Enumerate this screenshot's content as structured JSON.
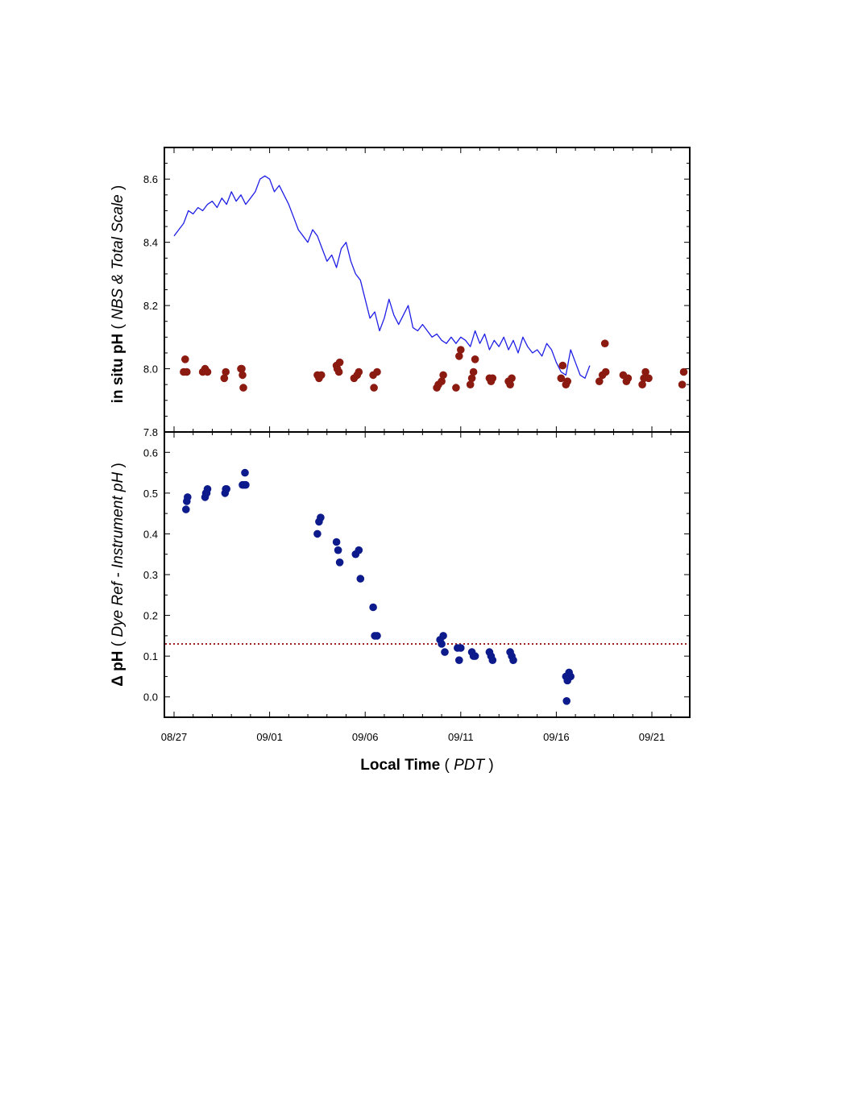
{
  "chart_data": [
    {
      "type": "line",
      "ylabel": {
        "main": "in situ pH",
        "open": " ( ",
        "sub": "NBS & Total Scale",
        "close": " )"
      },
      "ylim": [
        7.8,
        8.7
      ],
      "y_ticks": [
        "7.8",
        "8.0",
        "8.2",
        "8.4",
        "8.6"
      ],
      "series": [
        {
          "type": "line",
          "color": "#1f1fe6",
          "points": [
            [
              "08/27 00:00",
              8.42
            ],
            [
              "08/27 06:00",
              8.44
            ],
            [
              "08/27 12:00",
              8.46
            ],
            [
              "08/27 18:00",
              8.5
            ],
            [
              "08/28 00:00",
              8.49
            ],
            [
              "08/28 06:00",
              8.51
            ],
            [
              "08/28 12:00",
              8.5
            ],
            [
              "08/28 18:00",
              8.52
            ],
            [
              "08/29 00:00",
              8.53
            ],
            [
              "08/29 06:00",
              8.51
            ],
            [
              "08/29 12:00",
              8.54
            ],
            [
              "08/29 18:00",
              8.52
            ],
            [
              "08/30 00:00",
              8.56
            ],
            [
              "08/30 06:00",
              8.53
            ],
            [
              "08/30 12:00",
              8.55
            ],
            [
              "08/30 18:00",
              8.52
            ],
            [
              "08/31 00:00",
              8.54
            ],
            [
              "08/31 06:00",
              8.56
            ],
            [
              "08/31 12:00",
              8.6
            ],
            [
              "08/31 18:00",
              8.61
            ],
            [
              "09/01 00:00",
              8.6
            ],
            [
              "09/01 06:00",
              8.56
            ],
            [
              "09/01 12:00",
              8.58
            ],
            [
              "09/01 18:00",
              8.55
            ],
            [
              "09/02 00:00",
              8.52
            ],
            [
              "09/02 06:00",
              8.48
            ],
            [
              "09/02 12:00",
              8.44
            ],
            [
              "09/02 18:00",
              8.42
            ],
            [
              "09/03 00:00",
              8.4
            ],
            [
              "09/03 06:00",
              8.44
            ],
            [
              "09/03 12:00",
              8.42
            ],
            [
              "09/03 18:00",
              8.38
            ],
            [
              "09/04 00:00",
              8.34
            ],
            [
              "09/04 06:00",
              8.36
            ],
            [
              "09/04 12:00",
              8.32
            ],
            [
              "09/04 18:00",
              8.38
            ],
            [
              "09/05 00:00",
              8.4
            ],
            [
              "09/05 06:00",
              8.34
            ],
            [
              "09/05 12:00",
              8.3
            ],
            [
              "09/05 18:00",
              8.28
            ],
            [
              "09/06 00:00",
              8.22
            ],
            [
              "09/06 06:00",
              8.16
            ],
            [
              "09/06 12:00",
              8.18
            ],
            [
              "09/06 18:00",
              8.12
            ],
            [
              "09/07 00:00",
              8.16
            ],
            [
              "09/07 06:00",
              8.22
            ],
            [
              "09/07 12:00",
              8.17
            ],
            [
              "09/07 18:00",
              8.14
            ],
            [
              "09/08 00:00",
              8.17
            ],
            [
              "09/08 06:00",
              8.2
            ],
            [
              "09/08 12:00",
              8.13
            ],
            [
              "09/08 18:00",
              8.12
            ],
            [
              "09/09 00:00",
              8.14
            ],
            [
              "09/09 06:00",
              8.12
            ],
            [
              "09/09 12:00",
              8.1
            ],
            [
              "09/09 18:00",
              8.11
            ],
            [
              "09/10 00:00",
              8.09
            ],
            [
              "09/10 06:00",
              8.08
            ],
            [
              "09/10 12:00",
              8.1
            ],
            [
              "09/10 18:00",
              8.08
            ],
            [
              "09/11 00:00",
              8.1
            ],
            [
              "09/11 06:00",
              8.09
            ],
            [
              "09/11 12:00",
              8.07
            ],
            [
              "09/11 18:00",
              8.12
            ],
            [
              "09/12 00:00",
              8.08
            ],
            [
              "09/12 06:00",
              8.11
            ],
            [
              "09/12 12:00",
              8.06
            ],
            [
              "09/12 18:00",
              8.09
            ],
            [
              "09/13 00:00",
              8.07
            ],
            [
              "09/13 06:00",
              8.1
            ],
            [
              "09/13 12:00",
              8.06
            ],
            [
              "09/13 18:00",
              8.09
            ],
            [
              "09/14 00:00",
              8.05
            ],
            [
              "09/14 06:00",
              8.1
            ],
            [
              "09/14 12:00",
              8.07
            ],
            [
              "09/14 18:00",
              8.05
            ],
            [
              "09/15 00:00",
              8.06
            ],
            [
              "09/15 06:00",
              8.04
            ],
            [
              "09/15 12:00",
              8.08
            ],
            [
              "09/15 18:00",
              8.06
            ],
            [
              "09/16 00:00",
              8.02
            ],
            [
              "09/16 06:00",
              7.99
            ],
            [
              "09/16 12:00",
              7.98
            ],
            [
              "09/16 18:00",
              8.06
            ],
            [
              "09/17 00:00",
              8.02
            ],
            [
              "09/17 06:00",
              7.98
            ],
            [
              "09/17 12:00",
              7.97
            ],
            [
              "09/17 18:00",
              8.01
            ]
          ]
        },
        {
          "type": "scatter",
          "color": "#8b1a10",
          "points": [
            [
              "08/27 12:00",
              7.99
            ],
            [
              "08/27 14:00",
              8.03
            ],
            [
              "08/27 16:00",
              7.99
            ],
            [
              "08/28 12:00",
              7.99
            ],
            [
              "08/28 15:00",
              8.0
            ],
            [
              "08/28 18:00",
              7.99
            ],
            [
              "08/29 15:00",
              7.97
            ],
            [
              "08/29 17:00",
              7.99
            ],
            [
              "08/30 12:00",
              8.0
            ],
            [
              "08/30 14:00",
              7.98
            ],
            [
              "08/30 15:00",
              7.94
            ],
            [
              "08/30 13:00",
              8.0
            ],
            [
              "09/03 12:00",
              7.98
            ],
            [
              "09/03 14:00",
              7.97
            ],
            [
              "09/03 17:00",
              7.98
            ],
            [
              "09/04 12:00",
              8.01
            ],
            [
              "09/04 13:00",
              8.0
            ],
            [
              "09/04 15:00",
              7.99
            ],
            [
              "09/04 16:00",
              8.02
            ],
            [
              "09/05 10:00",
              7.97
            ],
            [
              "09/05 14:00",
              7.98
            ],
            [
              "09/05 16:00",
              7.99
            ],
            [
              "09/06 10:00",
              7.98
            ],
            [
              "09/06 11:00",
              7.94
            ],
            [
              "09/06 15:00",
              7.99
            ],
            [
              "09/09 18:00",
              7.94
            ],
            [
              "09/09 20:00",
              7.95
            ],
            [
              "09/10 00:00",
              7.96
            ],
            [
              "09/10 02:00",
              7.98
            ],
            [
              "09/10 18:00",
              7.94
            ],
            [
              "09/10 22:00",
              8.04
            ],
            [
              "09/11 00:00",
              8.06
            ],
            [
              "09/11 12:00",
              7.95
            ],
            [
              "09/11 14:00",
              7.97
            ],
            [
              "09/11 16:00",
              7.99
            ],
            [
              "09/11 18:00",
              8.03
            ],
            [
              "09/12 12:00",
              7.97
            ],
            [
              "09/12 14:00",
              7.96
            ],
            [
              "09/12 16:00",
              7.97
            ],
            [
              "09/13 12:00",
              7.96
            ],
            [
              "09/13 14:00",
              7.95
            ],
            [
              "09/13 16:00",
              7.97
            ],
            [
              "09/16 06:00",
              7.97
            ],
            [
              "09/16 08:00",
              8.01
            ],
            [
              "09/16 12:00",
              7.95
            ],
            [
              "09/16 14:00",
              7.96
            ],
            [
              "09/18 06:00",
              7.96
            ],
            [
              "09/18 10:00",
              7.98
            ],
            [
              "09/18 13:00",
              8.08
            ],
            [
              "09/18 14:00",
              7.99
            ],
            [
              "09/19 12:00",
              7.98
            ],
            [
              "09/19 16:00",
              7.96
            ],
            [
              "09/19 18:00",
              7.97
            ],
            [
              "09/20 12:00",
              7.95
            ],
            [
              "09/20 14:00",
              7.97
            ],
            [
              "09/20 16:00",
              7.99
            ],
            [
              "09/20 20:00",
              7.97
            ],
            [
              "09/22 14:00",
              7.95
            ],
            [
              "09/22 16:00",
              7.99
            ]
          ]
        }
      ]
    },
    {
      "type": "scatter",
      "ylabel": {
        "main": "Δ pH",
        "open": "  ( ",
        "sub": "Dye Ref - Instrument pH",
        "close": " )"
      },
      "xlabel": {
        "main": "Local Time",
        "open": " ( ",
        "sub": "PDT",
        "close": " )"
      },
      "ylim": [
        -0.05,
        0.65
      ],
      "y_ticks": [
        "0.0",
        "0.1",
        "0.2",
        "0.3",
        "0.4",
        "0.5",
        "0.6"
      ],
      "x_ticks": [
        "08/27",
        "09/01",
        "09/06",
        "09/11",
        "09/16",
        "09/21"
      ],
      "reference_line": {
        "y": 0.13,
        "color": "#a02020",
        "style": "dotted"
      },
      "series": [
        {
          "type": "scatter",
          "color": "#0c1a8c",
          "points": [
            [
              "08/27 15:00",
              0.46
            ],
            [
              "08/27 16:00",
              0.48
            ],
            [
              "08/27 17:00",
              0.49
            ],
            [
              "08/28 15:00",
              0.49
            ],
            [
              "08/28 16:00",
              0.5
            ],
            [
              "08/28 18:00",
              0.51
            ],
            [
              "08/28 17:00",
              0.5
            ],
            [
              "08/29 16:00",
              0.5
            ],
            [
              "08/29 17:00",
              0.51
            ],
            [
              "08/29 18:00",
              0.51
            ],
            [
              "08/30 14:00",
              0.52
            ],
            [
              "08/30 16:00",
              0.52
            ],
            [
              "08/30 17:00",
              0.55
            ],
            [
              "08/30 18:00",
              0.52
            ],
            [
              "09/03 12:00",
              0.4
            ],
            [
              "09/03 14:00",
              0.43
            ],
            [
              "09/03 16:00",
              0.44
            ],
            [
              "09/04 12:00",
              0.38
            ],
            [
              "09/04 14:00",
              0.36
            ],
            [
              "09/04 16:00",
              0.33
            ],
            [
              "09/05 12:00",
              0.35
            ],
            [
              "09/05 16:00",
              0.36
            ],
            [
              "09/05 18:00",
              0.29
            ],
            [
              "09/06 10:00",
              0.22
            ],
            [
              "09/06 12:00",
              0.15
            ],
            [
              "09/06 15:00",
              0.15
            ],
            [
              "09/09 22:00",
              0.14
            ],
            [
              "09/10 00:00",
              0.13
            ],
            [
              "09/10 02:00",
              0.15
            ],
            [
              "09/10 04:00",
              0.11
            ],
            [
              "09/10 20:00",
              0.12
            ],
            [
              "09/10 22:00",
              0.09
            ],
            [
              "09/11 00:00",
              0.12
            ],
            [
              "09/11 14:00",
              0.11
            ],
            [
              "09/11 16:00",
              0.1
            ],
            [
              "09/11 18:00",
              0.1
            ],
            [
              "09/12 12:00",
              0.11
            ],
            [
              "09/12 14:00",
              0.1
            ],
            [
              "09/12 16:00",
              0.09
            ],
            [
              "09/13 14:00",
              0.11
            ],
            [
              "09/13 16:00",
              0.1
            ],
            [
              "09/13 18:00",
              0.09
            ],
            [
              "09/16 12:00",
              0.05
            ],
            [
              "09/16 13:00",
              -0.01
            ],
            [
              "09/16 14:00",
              0.04
            ],
            [
              "09/16 16:00",
              0.06
            ],
            [
              "09/16 18:00",
              0.05
            ]
          ]
        }
      ]
    }
  ]
}
